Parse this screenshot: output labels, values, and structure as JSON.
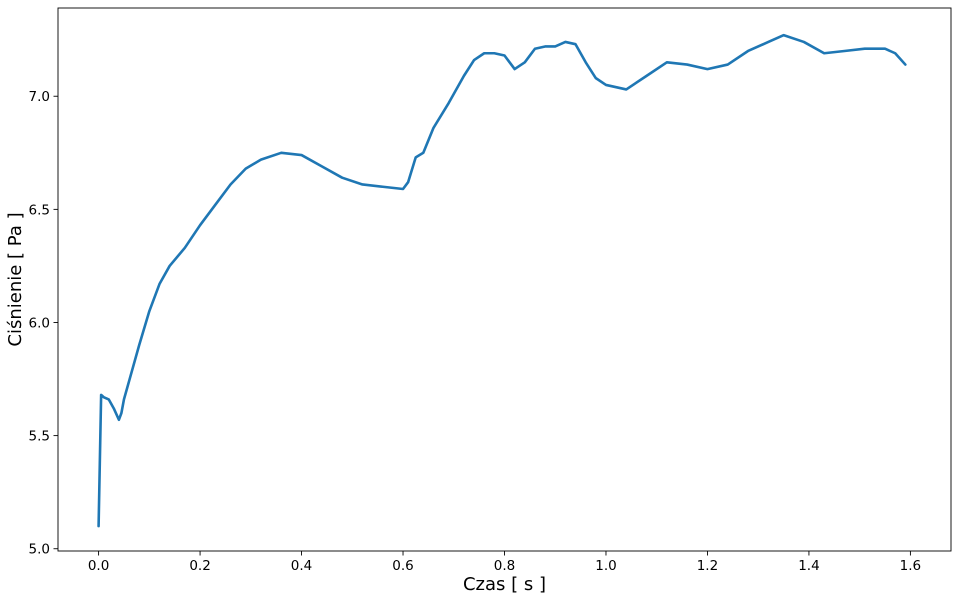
{
  "chart_data": {
    "type": "line",
    "title": "",
    "xlabel": "Czas [ s ]",
    "ylabel": "Ciśnienie [ Pa ]",
    "xlim": [
      -0.08,
      1.68
    ],
    "ylim": [
      4.99,
      7.39
    ],
    "xticks": [
      0.0,
      0.2,
      0.4,
      0.6,
      0.8,
      1.0,
      1.2,
      1.4,
      1.6
    ],
    "xtick_labels": [
      "0.0",
      "0.2",
      "0.4",
      "0.6",
      "0.8",
      "1.0",
      "1.2",
      "1.4",
      "1.6"
    ],
    "yticks": [
      5.0,
      5.5,
      6.0,
      6.5,
      7.0
    ],
    "ytick_labels": [
      "5.0",
      "5.5",
      "6.0",
      "6.5",
      "7.0"
    ],
    "grid": false,
    "legend": "none",
    "series": [
      {
        "color": "#1f77b4",
        "x": [
          0.0,
          0.005,
          0.01,
          0.02,
          0.03,
          0.04,
          0.045,
          0.05,
          0.06,
          0.08,
          0.1,
          0.12,
          0.14,
          0.17,
          0.2,
          0.23,
          0.26,
          0.29,
          0.32,
          0.36,
          0.4,
          0.44,
          0.48,
          0.52,
          0.56,
          0.6,
          0.61,
          0.625,
          0.64,
          0.66,
          0.69,
          0.72,
          0.74,
          0.76,
          0.78,
          0.8,
          0.82,
          0.84,
          0.86,
          0.88,
          0.9,
          0.92,
          0.94,
          0.96,
          0.98,
          1.0,
          1.04,
          1.08,
          1.12,
          1.16,
          1.2,
          1.24,
          1.28,
          1.32,
          1.35,
          1.39,
          1.43,
          1.47,
          1.51,
          1.55,
          1.57,
          1.59
        ],
        "y": [
          5.1,
          5.68,
          5.67,
          5.66,
          5.62,
          5.57,
          5.6,
          5.66,
          5.74,
          5.9,
          6.05,
          6.17,
          6.25,
          6.33,
          6.43,
          6.52,
          6.61,
          6.68,
          6.72,
          6.75,
          6.74,
          6.69,
          6.64,
          6.61,
          6.6,
          6.59,
          6.62,
          6.73,
          6.75,
          6.86,
          6.97,
          7.09,
          7.16,
          7.19,
          7.19,
          7.18,
          7.12,
          7.15,
          7.21,
          7.22,
          7.22,
          7.24,
          7.23,
          7.15,
          7.08,
          7.05,
          7.03,
          7.09,
          7.15,
          7.14,
          7.12,
          7.14,
          7.2,
          7.24,
          7.27,
          7.24,
          7.19,
          7.2,
          7.21,
          7.21,
          7.19,
          7.14
        ]
      }
    ]
  }
}
